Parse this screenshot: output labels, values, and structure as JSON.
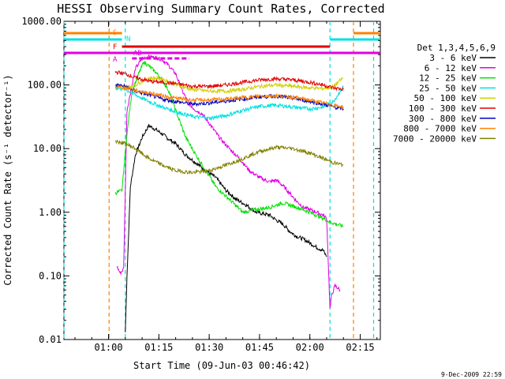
{
  "chart_data": {
    "type": "line",
    "title": "HESSI Observing Summary Count Rates, Corrected",
    "xlabel": "Start Time (09-Jun-03 00:46:42)",
    "ylabel": "Corrected Count Rate (s⁻¹ detector⁻¹)",
    "y_scale": "log",
    "xlim": [
      "00:46:42",
      "02:21:00"
    ],
    "ylim": [
      0.01,
      1000
    ],
    "x_ticks": [
      "01:00",
      "01:15",
      "01:30",
      "01:45",
      "02:00",
      "02:15"
    ],
    "y_ticks": [
      "0.01",
      "0.10",
      "1.00",
      "10.00",
      "100.00",
      "1000.00"
    ],
    "footer_date": "9-Dec-2009 22:59",
    "legend": {
      "title": "Det 1,3,4,5,6,9",
      "placement": "right"
    },
    "flag_labels": {
      "saa": "S",
      "night": "N",
      "flare": "F",
      "attenuator": "A",
      "decimation": "AD"
    },
    "vertical_markers": [
      {
        "time": "00:46:42",
        "color": "#00e0e0"
      },
      {
        "time": "01:00:10",
        "color": "#ff8000"
      },
      {
        "time": "01:05:00",
        "color": "#00e0e0"
      },
      {
        "time": "02:06:00",
        "color": "#00e0e0"
      },
      {
        "time": "02:13:00",
        "color": "#ff8000"
      },
      {
        "time": "02:19:00",
        "color": "#00e0e0"
      }
    ],
    "series": [
      {
        "name": "3 - 6 keV",
        "color": "#000000",
        "x": [
          "01:05:00",
          "01:05:30",
          "01:06:30",
          "01:08:00",
          "01:10:00",
          "01:12:00",
          "01:14:00",
          "01:16:00",
          "01:18:00",
          "01:20:00",
          "01:23:00",
          "01:26:00",
          "01:29:00",
          "01:32:00",
          "01:35:00",
          "01:38:00",
          "01:41:00",
          "01:44:00",
          "01:46:00",
          "01:48:00",
          "01:50:00",
          "01:52:00",
          "01:54:00",
          "01:56:00",
          "01:58:00",
          "02:00:00",
          "02:02:00",
          "02:04:00",
          "02:05:00"
        ],
        "y": [
          0.013,
          0.1,
          2.5,
          8,
          15,
          23,
          20,
          17,
          14,
          12,
          8,
          6,
          4.5,
          3.5,
          2.2,
          1.6,
          1.3,
          1.0,
          0.95,
          0.9,
          0.75,
          0.65,
          0.5,
          0.42,
          0.38,
          0.33,
          0.28,
          0.25,
          0.2
        ]
      },
      {
        "name": "6 - 12 keV",
        "color": "#e000e0",
        "x": [
          "01:02:30",
          "01:03:30",
          "01:04:30",
          "01:05:30",
          "01:07:00",
          "01:08:00",
          "01:10:00",
          "01:12:00",
          "01:14:00",
          "01:16:00",
          "01:18:00",
          "01:20:00",
          "01:22:00",
          "01:24:00",
          "01:26:00",
          "01:28:00",
          "01:30:00",
          "01:33:00",
          "01:36:00",
          "01:39:00",
          "01:42:00",
          "01:45:00",
          "01:48:00",
          "01:50:00",
          "01:52:00",
          "01:54:00",
          "01:56:00",
          "01:58:00",
          "02:00:00",
          "02:02:00",
          "02:04:00",
          "02:05:00",
          "02:06:00",
          "02:06:30",
          "02:07:30",
          "02:09:00"
        ],
        "y": [
          0.14,
          0.11,
          0.13,
          40,
          100,
          180,
          260,
          280,
          270,
          250,
          200,
          150,
          80,
          50,
          40,
          35,
          25,
          15,
          10,
          7,
          4.5,
          3.5,
          3,
          3.2,
          2.6,
          2.0,
          1.5,
          1.2,
          1.1,
          1.0,
          0.9,
          0.8,
          0.03,
          0.05,
          0.07,
          0.06
        ]
      },
      {
        "name": "12 - 25 keV",
        "color": "#00e000",
        "x": [
          "01:02:00",
          "01:04:00",
          "01:05:00",
          "01:06:00",
          "01:07:00",
          "01:09:00",
          "01:10:30",
          "01:12:00",
          "01:14:00",
          "01:16:00",
          "01:18:00",
          "01:20:00",
          "01:23:00",
          "01:26:00",
          "01:29:00",
          "01:32:00",
          "01:36:00",
          "01:40:00",
          "01:44:00",
          "01:48:00",
          "01:52:00",
          "01:56:00",
          "02:00:00",
          "02:04:00",
          "02:06:00",
          "02:10:00"
        ],
        "y": [
          2.0,
          2.2,
          9,
          30,
          80,
          150,
          230,
          200,
          160,
          120,
          80,
          40,
          15,
          8,
          4.5,
          2.5,
          1.6,
          1.0,
          1.1,
          1.2,
          1.4,
          1.2,
          1.0,
          0.8,
          0.7,
          0.6
        ]
      },
      {
        "name": "25 - 50 keV",
        "color": "#00e0e0",
        "x": [
          "01:02:00",
          "01:05:00",
          "01:08:00",
          "01:12:00",
          "01:16:00",
          "01:20:00",
          "01:25:00",
          "01:30:00",
          "01:35:00",
          "01:40:00",
          "01:45:00",
          "01:50:00",
          "01:55:00",
          "02:00:00",
          "02:04:00",
          "02:07:00",
          "02:10:00"
        ],
        "y": [
          90,
          85,
          70,
          55,
          45,
          38,
          32,
          30,
          33,
          40,
          46,
          48,
          45,
          42,
          45,
          55,
          95
        ]
      },
      {
        "name": "50 - 100 keV",
        "color": "#d0d000",
        "x": [
          "01:02:00",
          "01:05:00",
          "01:08:00",
          "01:12:00",
          "01:16:00",
          "01:20:00",
          "01:25:00",
          "01:30:00",
          "01:35:00",
          "01:40:00",
          "01:45:00",
          "01:50:00",
          "01:55:00",
          "02:00:00",
          "02:04:00",
          "02:07:00",
          "02:10:00"
        ],
        "y": [
          95,
          90,
          100,
          130,
          125,
          100,
          85,
          80,
          80,
          85,
          95,
          100,
          95,
          90,
          88,
          95,
          130
        ]
      },
      {
        "name": "100 - 300 keV",
        "color": "#e00000",
        "x": [
          "01:02:00",
          "01:05:00",
          "01:08:00",
          "01:12:00",
          "01:16:00",
          "01:20:00",
          "01:25:00",
          "01:30:00",
          "01:35:00",
          "01:40:00",
          "01:45:00",
          "01:50:00",
          "01:55:00",
          "02:00:00",
          "02:04:00",
          "02:07:00",
          "02:10:00"
        ],
        "y": [
          160,
          150,
          130,
          115,
          110,
          105,
          95,
          95,
          100,
          110,
          120,
          125,
          120,
          110,
          100,
          90,
          85
        ]
      },
      {
        "name": "300 - 800 keV",
        "color": "#0000c0",
        "x": [
          "01:02:00",
          "01:05:00",
          "01:08:00",
          "01:12:00",
          "01:16:00",
          "01:20:00",
          "01:25:00",
          "01:30:00",
          "01:35:00",
          "01:40:00",
          "01:45:00",
          "01:50:00",
          "01:55:00",
          "02:00:00",
          "02:04:00",
          "02:07:00",
          "02:10:00"
        ],
        "y": [
          100,
          95,
          80,
          70,
          60,
          55,
          50,
          52,
          56,
          60,
          65,
          67,
          62,
          55,
          50,
          45,
          42
        ]
      },
      {
        "name": "800 - 7000 keV",
        "color": "#ff8000",
        "x": [
          "01:02:00",
          "01:05:00",
          "01:08:00",
          "01:12:00",
          "01:16:00",
          "01:20:00",
          "01:25:00",
          "01:30:00",
          "01:35:00",
          "01:40:00",
          "01:45:00",
          "01:50:00",
          "01:55:00",
          "02:00:00",
          "02:04:00",
          "02:07:00",
          "02:10:00"
        ],
        "y": [
          95,
          90,
          82,
          75,
          68,
          62,
          58,
          58,
          60,
          63,
          67,
          68,
          64,
          58,
          52,
          48,
          45
        ]
      },
      {
        "name": "7000 - 20000 keV",
        "color": "#808000",
        "x": [
          "01:02:00",
          "01:05:00",
          "01:08:00",
          "01:12:00",
          "01:16:00",
          "01:20:00",
          "01:25:00",
          "01:30:00",
          "01:35:00",
          "01:40:00",
          "01:45:00",
          "01:50:00",
          "01:55:00",
          "02:00:00",
          "02:04:00",
          "02:07:00",
          "02:10:00"
        ],
        "y": [
          13,
          12,
          10,
          7,
          5.5,
          4.5,
          4.2,
          4.5,
          5.5,
          7,
          9,
          10.5,
          10,
          8.5,
          7,
          6,
          5.5
        ]
      }
    ]
  }
}
